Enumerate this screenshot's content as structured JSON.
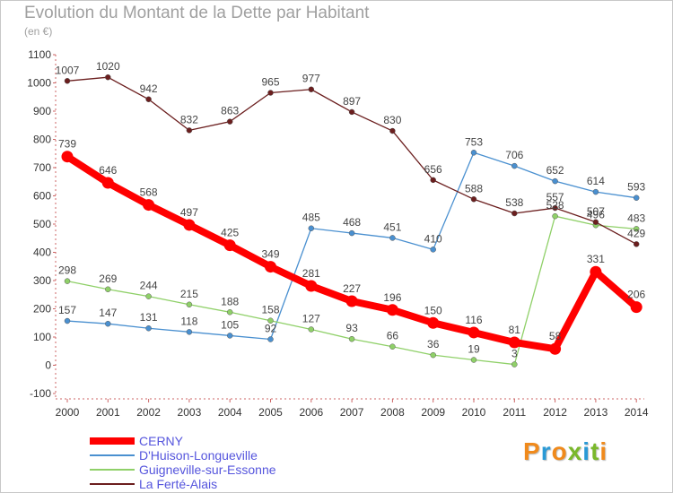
{
  "header": {
    "title": "Evolution du Montant de la Dette par Habitant",
    "subtitle": "(en €)"
  },
  "logo": {
    "text": "Proxiti",
    "colors": [
      "#f08a1c",
      "#2a9ad6",
      "#f08a1c",
      "#7ab82b",
      "#2a9ad6",
      "#7ab82b",
      "#f08a1c"
    ]
  },
  "chart_data": {
    "type": "line",
    "title": "Evolution du Montant de la Dette par Habitant",
    "subtitle": "(en €)",
    "xlabel": "",
    "ylabel": "",
    "ylim": [
      -100,
      1100
    ],
    "yticks": [
      -100,
      0,
      100,
      200,
      300,
      400,
      500,
      600,
      700,
      800,
      900,
      1000,
      1100
    ],
    "x": [
      "2000",
      "2001",
      "2002",
      "2003",
      "2004",
      "2005",
      "2006",
      "2007",
      "2008",
      "2009",
      "2010",
      "2011",
      "2012",
      "2013",
      "2014"
    ],
    "grid": false,
    "legend_position": "bottom-left",
    "series": [
      {
        "name": "CERNY",
        "color": "#ff0000",
        "emphasis": true,
        "values": [
          739,
          646,
          568,
          497,
          425,
          349,
          281,
          227,
          196,
          150,
          116,
          81,
          58,
          331,
          206
        ]
      },
      {
        "name": "D'Huison-Longueville",
        "color": "#4a90d0",
        "emphasis": false,
        "values": [
          157,
          147,
          131,
          118,
          105,
          92,
          485,
          468,
          451,
          410,
          753,
          706,
          652,
          614,
          593
        ]
      },
      {
        "name": "Guigneville-sur-Essonne",
        "color": "#8fd068",
        "emphasis": false,
        "values": [
          298,
          269,
          244,
          215,
          188,
          158,
          127,
          93,
          66,
          36,
          19,
          3,
          528,
          496,
          483
        ]
      },
      {
        "name": "La Ferté-Alais",
        "color": "#6b1e1e",
        "emphasis": false,
        "values": [
          1007,
          1020,
          942,
          832,
          863,
          965,
          977,
          897,
          830,
          656,
          588,
          538,
          557,
          507,
          429
        ]
      }
    ]
  }
}
